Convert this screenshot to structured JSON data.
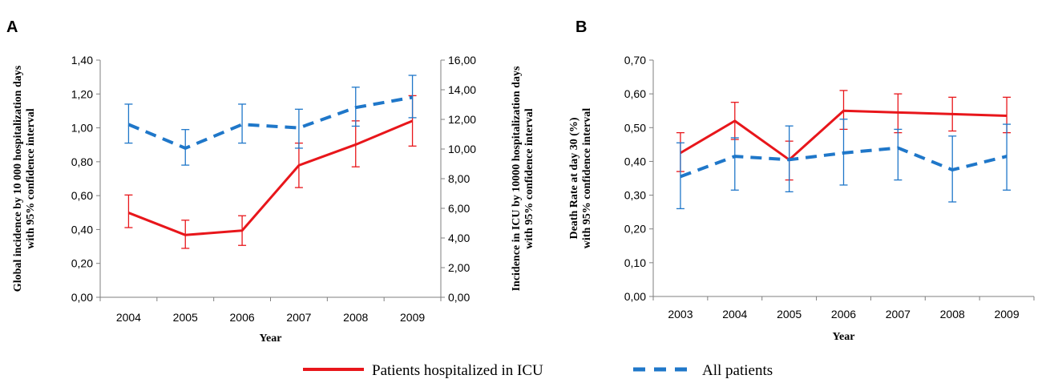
{
  "colors": {
    "red": "#e8161b",
    "blue": "#1f77c9",
    "axis": "#7f7f7f"
  },
  "chart_data": [
    {
      "panel": "A",
      "type": "line",
      "x": [
        "2004",
        "2005",
        "2006",
        "2007",
        "2008",
        "2009"
      ],
      "xlabel": "Year",
      "ylabel_left": [
        "Global incidence by 10 000 hospitalization days",
        "with 95% confidence interval"
      ],
      "ylabel_right": [
        "Incidence in ICU by 10000 hospitalization days",
        "with 95% confidence interval"
      ],
      "ylim_left": [
        0,
        1.4
      ],
      "yticks_left": [
        "0,00",
        "0,20",
        "0,40",
        "0,60",
        "0,80",
        "1,00",
        "1,20",
        "1,40"
      ],
      "ylim_right": [
        0,
        16
      ],
      "yticks_right": [
        "0,00",
        "2,00",
        "4,00",
        "6,00",
        "8,00",
        "10,00",
        "12,00",
        "14,00",
        "16,00"
      ],
      "grid": false,
      "series": [
        {
          "name": "Patients hospitalized in ICU",
          "axis": "right",
          "style": "solid",
          "color": "#e8161b",
          "values": [
            5.7,
            4.2,
            4.5,
            8.9,
            10.3,
            11.9
          ],
          "lower": [
            4.7,
            3.3,
            3.5,
            7.4,
            8.8,
            10.2
          ],
          "upper": [
            6.9,
            5.2,
            5.5,
            10.4,
            11.9,
            13.6
          ]
        },
        {
          "name": "All patients",
          "axis": "left",
          "style": "dashed",
          "color": "#1f77c9",
          "values": [
            1.02,
            0.88,
            1.02,
            1.0,
            1.12,
            1.18
          ],
          "lower": [
            0.91,
            0.78,
            0.91,
            0.88,
            1.01,
            1.06
          ],
          "upper": [
            1.14,
            0.99,
            1.14,
            1.11,
            1.24,
            1.31
          ]
        }
      ]
    },
    {
      "panel": "B",
      "type": "line",
      "x": [
        "2003",
        "2004",
        "2005",
        "2006",
        "2007",
        "2008",
        "2009"
      ],
      "xlabel": "Year",
      "ylabel": [
        "Death Rate at day 30 (%)",
        "with 95% confidence interval"
      ],
      "ylim": [
        0,
        0.7
      ],
      "yticks": [
        "0,00",
        "0,10",
        "0,20",
        "0,30",
        "0,40",
        "0,50",
        "0,60",
        "0,70"
      ],
      "grid": false,
      "series": [
        {
          "name": "Patients hospitalized in ICU",
          "style": "solid",
          "color": "#e8161b",
          "values": [
            0.425,
            0.52,
            0.405,
            0.55,
            0.545,
            0.54,
            0.535
          ],
          "lower": [
            0.37,
            0.465,
            0.345,
            0.495,
            0.485,
            0.49,
            0.485
          ],
          "upper": [
            0.485,
            0.575,
            0.46,
            0.61,
            0.6,
            0.59,
            0.59
          ]
        },
        {
          "name": "All patients",
          "style": "dashed",
          "color": "#1f77c9",
          "values": [
            0.355,
            0.415,
            0.405,
            0.425,
            0.44,
            0.375,
            0.415
          ],
          "lower": [
            0.26,
            0.315,
            0.31,
            0.33,
            0.345,
            0.28,
            0.315
          ],
          "upper": [
            0.455,
            0.47,
            0.505,
            0.525,
            0.495,
            0.475,
            0.51
          ]
        }
      ]
    }
  ],
  "legend": {
    "position": "bottom-center",
    "items": [
      {
        "label": "Patients hospitalized in ICU",
        "style": "solid",
        "color": "#e8161b"
      },
      {
        "label": "All patients",
        "style": "dashed",
        "color": "#1f77c9"
      }
    ]
  }
}
